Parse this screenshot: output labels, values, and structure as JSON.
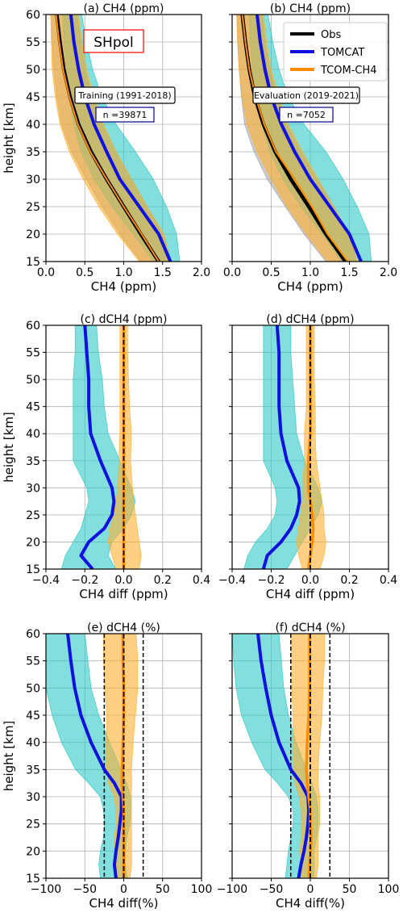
{
  "figure": {
    "region_label": "SHpol",
    "colors": {
      "obs": "#000000",
      "tomcat": "#1010e0",
      "tcom": "#ff8c00",
      "cyan_fill": "#30c8c8",
      "orange_fill": "#ffb030",
      "grey_fill": "#a0a0a0",
      "region_box": "#ff0000",
      "n_box": "#00008b"
    }
  },
  "chart_data": [
    {
      "id": "a",
      "type": "line",
      "title": "(a) CH4 (ppm)",
      "xlabel": "CH4 (ppm)",
      "ylabel": "height [km]",
      "xlim": [
        0,
        2
      ],
      "ylim": [
        15,
        60
      ],
      "xticks": [
        0,
        0.5,
        1,
        1.5,
        2
      ],
      "xtick_labels": [
        "0.0",
        "0.5",
        "1.0",
        "1.5",
        "2.0"
      ],
      "yticks": [
        15,
        20,
        25,
        30,
        35,
        40,
        45,
        50,
        55,
        60
      ],
      "ytick_labels": [
        "15",
        "20",
        "25",
        "30",
        "35",
        "40",
        "45",
        "50",
        "55",
        "60"
      ],
      "grid": true,
      "annotation": {
        "text": "Training (1991-2018)",
        "n_label": "n =39871"
      },
      "y": [
        15,
        20,
        25,
        30,
        35,
        40,
        45,
        50,
        55,
        60
      ],
      "series": [
        {
          "name": "Obs",
          "values": [
            1.45,
            1.22,
            1.0,
            0.78,
            0.58,
            0.42,
            0.31,
            0.23,
            0.18,
            0.14
          ],
          "band_low": [
            1.22,
            0.95,
            0.72,
            0.52,
            0.33,
            0.2,
            0.14,
            0.1,
            0.08,
            0.07
          ],
          "band_high": [
            1.62,
            1.5,
            1.3,
            1.1,
            0.9,
            0.72,
            0.6,
            0.5,
            0.45,
            0.4
          ]
        },
        {
          "name": "TOMCAT",
          "values": [
            1.6,
            1.45,
            1.2,
            0.95,
            0.78,
            0.62,
            0.5,
            0.42,
            0.36,
            0.32
          ],
          "band_low": [
            1.38,
            1.12,
            0.85,
            0.62,
            0.45,
            0.36,
            0.3,
            0.26,
            0.23,
            0.22
          ],
          "band_high": [
            1.72,
            1.68,
            1.55,
            1.38,
            1.15,
            0.9,
            0.72,
            0.6,
            0.52,
            0.46
          ]
        },
        {
          "name": "TCOM-CH4",
          "values": [
            1.45,
            1.23,
            1.0,
            0.78,
            0.57,
            0.41,
            0.3,
            0.22,
            0.17,
            0.13
          ],
          "band_low": [
            1.2,
            0.92,
            0.68,
            0.48,
            0.3,
            0.18,
            0.12,
            0.08,
            0.07,
            0.06
          ],
          "band_high": [
            1.6,
            1.52,
            1.3,
            1.1,
            0.9,
            0.74,
            0.62,
            0.52,
            0.46,
            0.42
          ]
        }
      ]
    },
    {
      "id": "b",
      "type": "line",
      "title": "(b) CH4 (ppm)",
      "xlabel": "CH4 (ppm)",
      "ylabel": "",
      "xlim": [
        0,
        2
      ],
      "ylim": [
        15,
        60
      ],
      "xticks": [
        0,
        0.5,
        1,
        1.5,
        2
      ],
      "xtick_labels": [
        "0.0",
        "0.5",
        "1.0",
        "1.5",
        "2.0"
      ],
      "yticks": [
        15,
        20,
        25,
        30,
        35,
        40,
        45,
        50,
        55,
        60
      ],
      "ytick_labels": [],
      "grid": true,
      "legend": [
        "Obs",
        "TOMCAT",
        "TCOM-CH4"
      ],
      "annotation": {
        "text": "Evaluation (2019-2021)",
        "n_label": "n =7052"
      },
      "y": [
        15,
        20,
        25,
        30,
        35,
        40,
        45,
        50,
        55,
        60
      ],
      "series": [
        {
          "name": "Obs",
          "values": [
            1.45,
            1.2,
            0.98,
            0.75,
            0.55,
            0.4,
            0.29,
            0.22,
            0.17,
            0.13
          ],
          "band_low": [
            1.2,
            0.92,
            0.68,
            0.45,
            0.28,
            0.16,
            0.12,
            0.09,
            0.07,
            0.06
          ],
          "band_high": [
            1.58,
            1.5,
            1.3,
            1.08,
            0.88,
            0.7,
            0.58,
            0.48,
            0.42,
            0.38
          ]
        },
        {
          "name": "TOMCAT",
          "values": [
            1.65,
            1.5,
            1.25,
            1.0,
            0.8,
            0.63,
            0.5,
            0.42,
            0.36,
            0.32
          ],
          "band_low": [
            1.4,
            1.15,
            0.88,
            0.65,
            0.48,
            0.38,
            0.3,
            0.26,
            0.23,
            0.22
          ],
          "band_high": [
            1.78,
            1.75,
            1.6,
            1.42,
            1.2,
            0.92,
            0.72,
            0.6,
            0.52,
            0.46
          ]
        },
        {
          "name": "TCOM-CH4",
          "values": [
            1.48,
            1.22,
            1.02,
            0.8,
            0.56,
            0.41,
            0.3,
            0.22,
            0.17,
            0.13
          ],
          "band_low": [
            1.22,
            0.95,
            0.7,
            0.5,
            0.32,
            0.19,
            0.13,
            0.09,
            0.07,
            0.06
          ],
          "band_high": [
            1.6,
            1.5,
            1.3,
            1.1,
            0.9,
            0.72,
            0.6,
            0.5,
            0.44,
            0.4
          ]
        }
      ]
    },
    {
      "id": "c",
      "type": "line",
      "title": "(c) dCH4 (ppm)",
      "xlabel": "CH4 diff (ppm)",
      "ylabel": "height [km]",
      "xlim": [
        -0.4,
        0.4
      ],
      "ylim": [
        15,
        60
      ],
      "xticks": [
        -0.4,
        -0.2,
        0,
        0.2,
        0.4
      ],
      "xtick_labels": [
        "−0.4",
        "−0.2",
        "0.0",
        "0.2",
        "0.4"
      ],
      "yticks": [
        15,
        20,
        25,
        30,
        35,
        40,
        45,
        50,
        55,
        60
      ],
      "ytick_labels": [
        "15",
        "20",
        "25",
        "30",
        "35",
        "40",
        "45",
        "50",
        "55",
        "60"
      ],
      "grid": true,
      "zero_line": 0,
      "y": [
        15,
        17.5,
        20,
        22.5,
        25,
        27.5,
        30,
        35,
        40,
        45,
        50,
        55,
        60
      ],
      "series": [
        {
          "name": "TOMCAT",
          "values": [
            -0.16,
            -0.22,
            -0.18,
            -0.1,
            -0.06,
            -0.05,
            -0.06,
            -0.12,
            -0.17,
            -0.18,
            -0.18,
            -0.19,
            -0.2
          ],
          "band_low": [
            -0.32,
            -0.3,
            -0.26,
            -0.22,
            -0.2,
            -0.18,
            -0.19,
            -0.26,
            -0.26,
            -0.26,
            -0.26,
            -0.25,
            -0.25
          ],
          "band_high": [
            -0.04,
            -0.08,
            -0.06,
            0.0,
            0.04,
            0.06,
            0.04,
            -0.02,
            -0.08,
            -0.1,
            -0.11,
            -0.13,
            -0.14
          ]
        },
        {
          "name": "TCOM-CH4",
          "values": [
            0.0,
            0.0,
            0.0,
            0.0,
            0.0,
            0.0,
            0.0,
            0.0,
            0.0,
            0.0,
            0.0,
            0.0,
            0.0
          ],
          "band_low": [
            -0.04,
            -0.06,
            -0.08,
            -0.07,
            -0.05,
            -0.04,
            -0.03,
            -0.025,
            -0.02,
            -0.02,
            -0.02,
            -0.02,
            -0.02
          ],
          "band_high": [
            0.08,
            0.09,
            0.08,
            0.07,
            0.06,
            0.05,
            0.045,
            0.035,
            0.04,
            0.03,
            0.025,
            0.02,
            0.02
          ]
        }
      ]
    },
    {
      "id": "d",
      "type": "line",
      "title": "(d) dCH4 (ppm)",
      "xlabel": "CH4 diff (ppm)",
      "ylabel": "",
      "xlim": [
        -0.4,
        0.4
      ],
      "ylim": [
        15,
        60
      ],
      "xticks": [
        -0.4,
        -0.2,
        0,
        0.2,
        0.4
      ],
      "xtick_labels": [
        "−0.4",
        "−0.2",
        "0.0",
        "0.2",
        "0.4"
      ],
      "yticks": [
        15,
        20,
        25,
        30,
        35,
        40,
        45,
        50,
        55,
        60
      ],
      "ytick_labels": [],
      "grid": true,
      "zero_line": 0,
      "y": [
        15,
        17.5,
        20,
        22.5,
        25,
        27.5,
        30,
        35,
        40,
        45,
        50,
        55,
        60
      ],
      "series": [
        {
          "name": "TOMCAT",
          "values": [
            -0.24,
            -0.22,
            -0.15,
            -0.1,
            -0.07,
            -0.055,
            -0.06,
            -0.12,
            -0.15,
            -0.16,
            -0.16,
            -0.16,
            -0.17
          ],
          "band_low": [
            -0.34,
            -0.32,
            -0.28,
            -0.22,
            -0.18,
            -0.17,
            -0.18,
            -0.24,
            -0.24,
            -0.24,
            -0.24,
            -0.24,
            -0.24
          ],
          "band_high": [
            -0.12,
            -0.08,
            -0.04,
            0.0,
            0.04,
            0.06,
            0.04,
            -0.03,
            -0.07,
            -0.08,
            -0.09,
            -0.1,
            -0.1
          ]
        },
        {
          "name": "TCOM-CH4",
          "values": [
            -0.01,
            0.0,
            0.01,
            0.015,
            0.01,
            0.0,
            -0.01,
            -0.01,
            0.0,
            0.0,
            0.0,
            0.0,
            0.0
          ],
          "band_low": [
            -0.04,
            -0.06,
            -0.07,
            -0.06,
            -0.05,
            -0.04,
            -0.04,
            -0.03,
            -0.03,
            -0.02,
            -0.02,
            -0.02,
            -0.02
          ],
          "band_high": [
            0.05,
            0.07,
            0.08,
            0.07,
            0.07,
            0.06,
            0.05,
            0.03,
            0.025,
            0.025,
            0.02,
            0.02,
            0.02
          ]
        }
      ]
    },
    {
      "id": "e",
      "type": "line",
      "title": "(e) dCH4 (%)",
      "xlabel": "CH4 diff(%)",
      "ylabel": "height [km]",
      "xlim": [
        -100,
        100
      ],
      "ylim": [
        15,
        60
      ],
      "xticks": [
        -100,
        -50,
        0,
        50,
        100
      ],
      "xtick_labels": [
        "−100",
        "−50",
        "0",
        "50",
        "100"
      ],
      "yticks": [
        15,
        20,
        25,
        30,
        35,
        40,
        45,
        50,
        55,
        60
      ],
      "ytick_labels": [
        "15",
        "20",
        "25",
        "30",
        "35",
        "40",
        "45",
        "50",
        "55",
        "60"
      ],
      "grid": true,
      "zero_line": 0,
      "ref_lines": [
        -25,
        25
      ],
      "y": [
        15,
        17.5,
        20,
        22.5,
        25,
        27.5,
        30,
        32.5,
        35,
        40,
        45,
        50,
        55,
        60
      ],
      "series": [
        {
          "name": "TOMCAT",
          "values": [
            -10,
            -12,
            -10,
            -7,
            -5,
            -3,
            -3,
            -12,
            -25,
            -42,
            -55,
            -63,
            -68,
            -72
          ],
          "band_low": [
            -30,
            -32,
            -30,
            -26,
            -25,
            -26,
            -30,
            -45,
            -62,
            -80,
            -92,
            -100,
            -100,
            -100
          ],
          "band_high": [
            5,
            2,
            2,
            4,
            8,
            9,
            9,
            4,
            -3,
            -18,
            -32,
            -42,
            -46,
            -50
          ]
        },
        {
          "name": "TCOM-CH4",
          "values": [
            0,
            0,
            0,
            0,
            0,
            0,
            -1,
            -2,
            -2,
            -1,
            0,
            0,
            -1,
            -1
          ],
          "band_low": [
            -10,
            -10,
            -12,
            -12,
            -10,
            -10,
            -12,
            -20,
            -22,
            -22,
            -22,
            -24,
            -26,
            -26
          ],
          "band_high": [
            8,
            10,
            10,
            10,
            10,
            10,
            10,
            10,
            10,
            12,
            15,
            18,
            18,
            16
          ]
        }
      ]
    },
    {
      "id": "f",
      "type": "line",
      "title": "(f) dCH4 (%)",
      "xlabel": "CH4 diff(%)",
      "ylabel": "",
      "xlim": [
        -100,
        100
      ],
      "ylim": [
        15,
        60
      ],
      "xticks": [
        -100,
        -50,
        0,
        50,
        100
      ],
      "xtick_labels": [
        "−100",
        "−50",
        "0",
        "50",
        "100"
      ],
      "yticks": [
        15,
        20,
        25,
        30,
        35,
        40,
        45,
        50,
        55,
        60
      ],
      "ytick_labels": [],
      "grid": true,
      "zero_line": 0,
      "ref_lines": [
        -25,
        25
      ],
      "y": [
        15,
        17.5,
        20,
        22.5,
        25,
        27.5,
        30,
        32.5,
        35,
        40,
        45,
        50,
        55,
        60
      ],
      "series": [
        {
          "name": "TOMCAT",
          "values": [
            -15,
            -12,
            -8,
            -5,
            -3,
            -2,
            -3,
            -12,
            -25,
            -40,
            -50,
            -57,
            -63,
            -67
          ],
          "band_low": [
            -32,
            -30,
            -28,
            -25,
            -22,
            -22,
            -28,
            -42,
            -58,
            -75,
            -88,
            -95,
            -98,
            -100
          ],
          "band_high": [
            5,
            5,
            5,
            8,
            10,
            10,
            8,
            2,
            -5,
            -18,
            -28,
            -34,
            -37,
            -40
          ]
        },
        {
          "name": "TCOM-CH4",
          "values": [
            -2,
            -1,
            0,
            1,
            0,
            0,
            -2,
            -4,
            -5,
            -4,
            -2,
            -1,
            -1,
            -1
          ],
          "band_low": [
            -12,
            -12,
            -13,
            -12,
            -12,
            -12,
            -14,
            -20,
            -22,
            -22,
            -22,
            -24,
            -24,
            -25
          ],
          "band_high": [
            8,
            10,
            10,
            10,
            12,
            12,
            12,
            10,
            10,
            12,
            15,
            16,
            18,
            18
          ]
        }
      ]
    }
  ]
}
